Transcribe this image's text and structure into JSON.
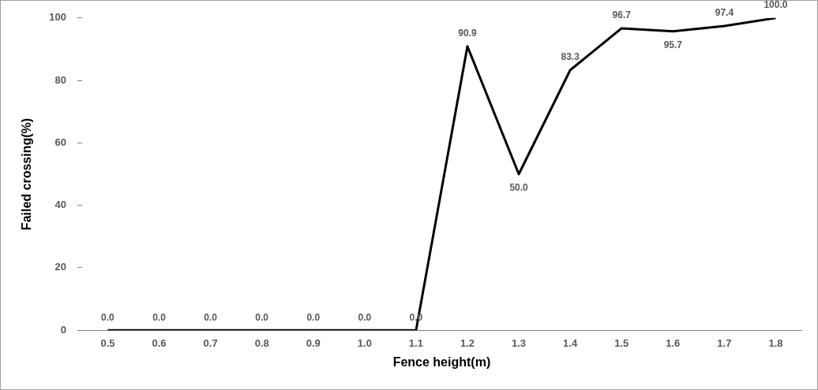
{
  "chart_data": {
    "type": "line",
    "xlabel": "Fence height(m)",
    "ylabel": "Failed crossing(%)",
    "categories": [
      "0.5",
      "0.6",
      "0.7",
      "0.8",
      "0.9",
      "1.0",
      "1.1",
      "1.2",
      "1.3",
      "1.4",
      "1.5",
      "1.6",
      "1.7",
      "1.8"
    ],
    "series": [
      {
        "color": "#000000",
        "values": [
          0,
          0,
          0,
          0,
          0,
          0,
          0,
          90.9,
          50,
          83.3,
          96.7,
          95.7,
          97.4,
          100
        ],
        "value_labels": [
          "0.0",
          "0.0",
          "0.0",
          "0.0",
          "0.0",
          "0.0",
          "0.0",
          "90.9",
          "50.0",
          "83.3",
          "96.7",
          "95.7",
          "97.4",
          "100.0"
        ]
      }
    ],
    "ylim": [
      0,
      100
    ],
    "yticks": [
      0,
      20,
      40,
      60,
      80,
      100
    ],
    "grid": false,
    "legend": false,
    "marker": "none",
    "line_style": "solid"
  }
}
